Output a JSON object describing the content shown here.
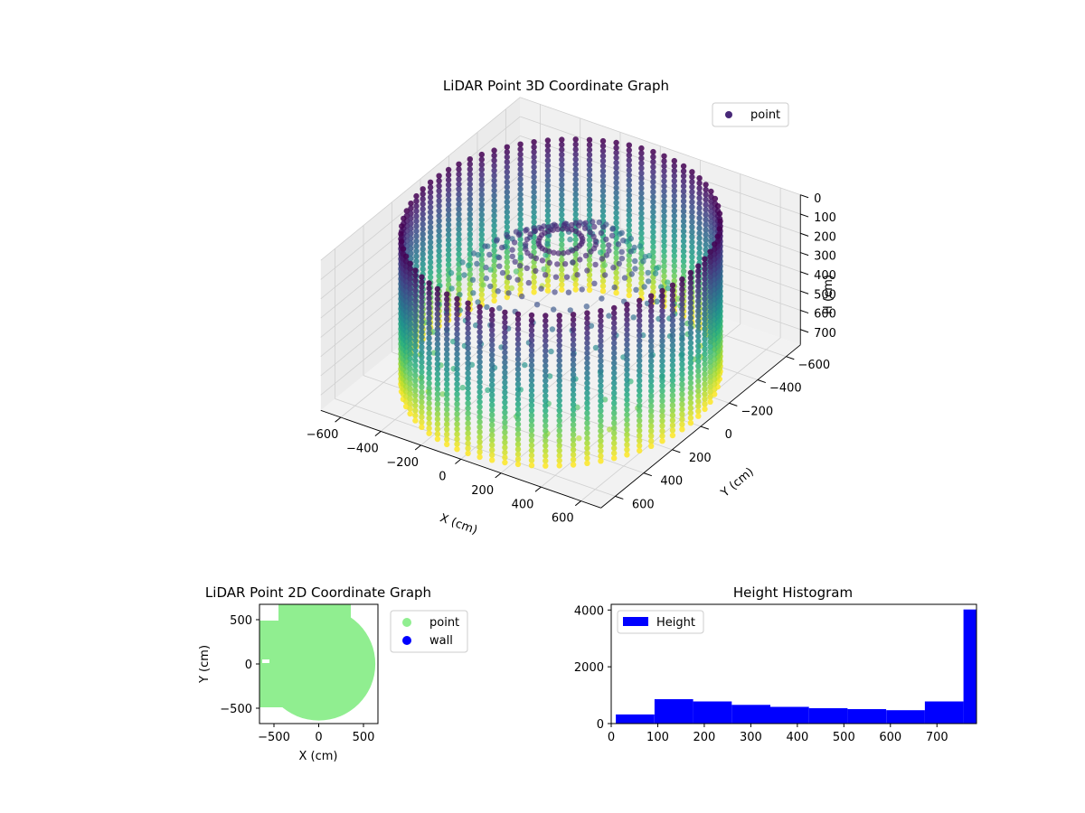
{
  "chart_data": [
    {
      "type": "scatter",
      "projection": "3d",
      "title": "LiDAR Point 3D Coordinate Graph",
      "xlabel": "X (cm)",
      "ylabel": "Y (cm)",
      "zlabel": "H (cm)",
      "xticks": [
        "−600",
        "−400",
        "−200",
        "0",
        "200",
        "400",
        "600"
      ],
      "yticks": [
        "−600",
        "−400",
        "−200",
        "0",
        "200",
        "400",
        "600"
      ],
      "zticks": [
        "0",
        "100",
        "200",
        "300",
        "400",
        "500",
        "600",
        "700"
      ],
      "xlim": [
        -700,
        700
      ],
      "ylim": [
        -700,
        700
      ],
      "zlim": [
        0,
        780
      ],
      "z_inverted": true,
      "colormap": "viridis",
      "legend": {
        "entries": [
          "point"
        ],
        "placement": "top-right"
      },
      "grid": true,
      "description_of_data": "cylindrical wall of points, radius about 650 cm, heights 0 to 780 cm, plus sparse points converging toward the centre near the top",
      "wall_radius": 650,
      "height_max": 780
    },
    {
      "type": "scatter",
      "title": "LiDAR Point 2D Coordinate Graph",
      "xlabel": "X (cm)",
      "ylabel": "Y (cm)",
      "xticks": [
        "−500",
        "0",
        "500"
      ],
      "yticks": [
        "500",
        "0",
        "−500"
      ],
      "xlim": [
        -680,
        680
      ],
      "ylim": [
        -680,
        680
      ],
      "series": [
        {
          "name": "point",
          "color": "#90ee90"
        },
        {
          "name": "wall",
          "color": "#0000ff"
        }
      ],
      "legend": {
        "placement": "outside-right"
      },
      "disk_radius": 650
    },
    {
      "type": "bar",
      "title": "Height Histogram",
      "legend": {
        "entries": [
          "Height"
        ],
        "placement": "top-left"
      },
      "xticks": [
        "0",
        "100",
        "200",
        "300",
        "400",
        "500",
        "600",
        "700"
      ],
      "yticks": [
        "0",
        "2000",
        "4000"
      ],
      "xlim": [
        0,
        785
      ],
      "ylim": [
        0,
        4200
      ],
      "color": "#0000ff",
      "bins": [
        {
          "x0": 10,
          "x1": 93,
          "count": 320
        },
        {
          "x0": 93,
          "x1": 176,
          "count": 860
        },
        {
          "x0": 176,
          "x1": 259,
          "count": 780
        },
        {
          "x0": 259,
          "x1": 342,
          "count": 660
        },
        {
          "x0": 342,
          "x1": 425,
          "count": 590
        },
        {
          "x0": 425,
          "x1": 508,
          "count": 540
        },
        {
          "x0": 508,
          "x1": 591,
          "count": 510
        },
        {
          "x0": 591,
          "x1": 674,
          "count": 470
        },
        {
          "x0": 674,
          "x1": 757,
          "count": 780
        },
        {
          "x0": 757,
          "x1": 785,
          "count": 4020
        }
      ]
    }
  ]
}
